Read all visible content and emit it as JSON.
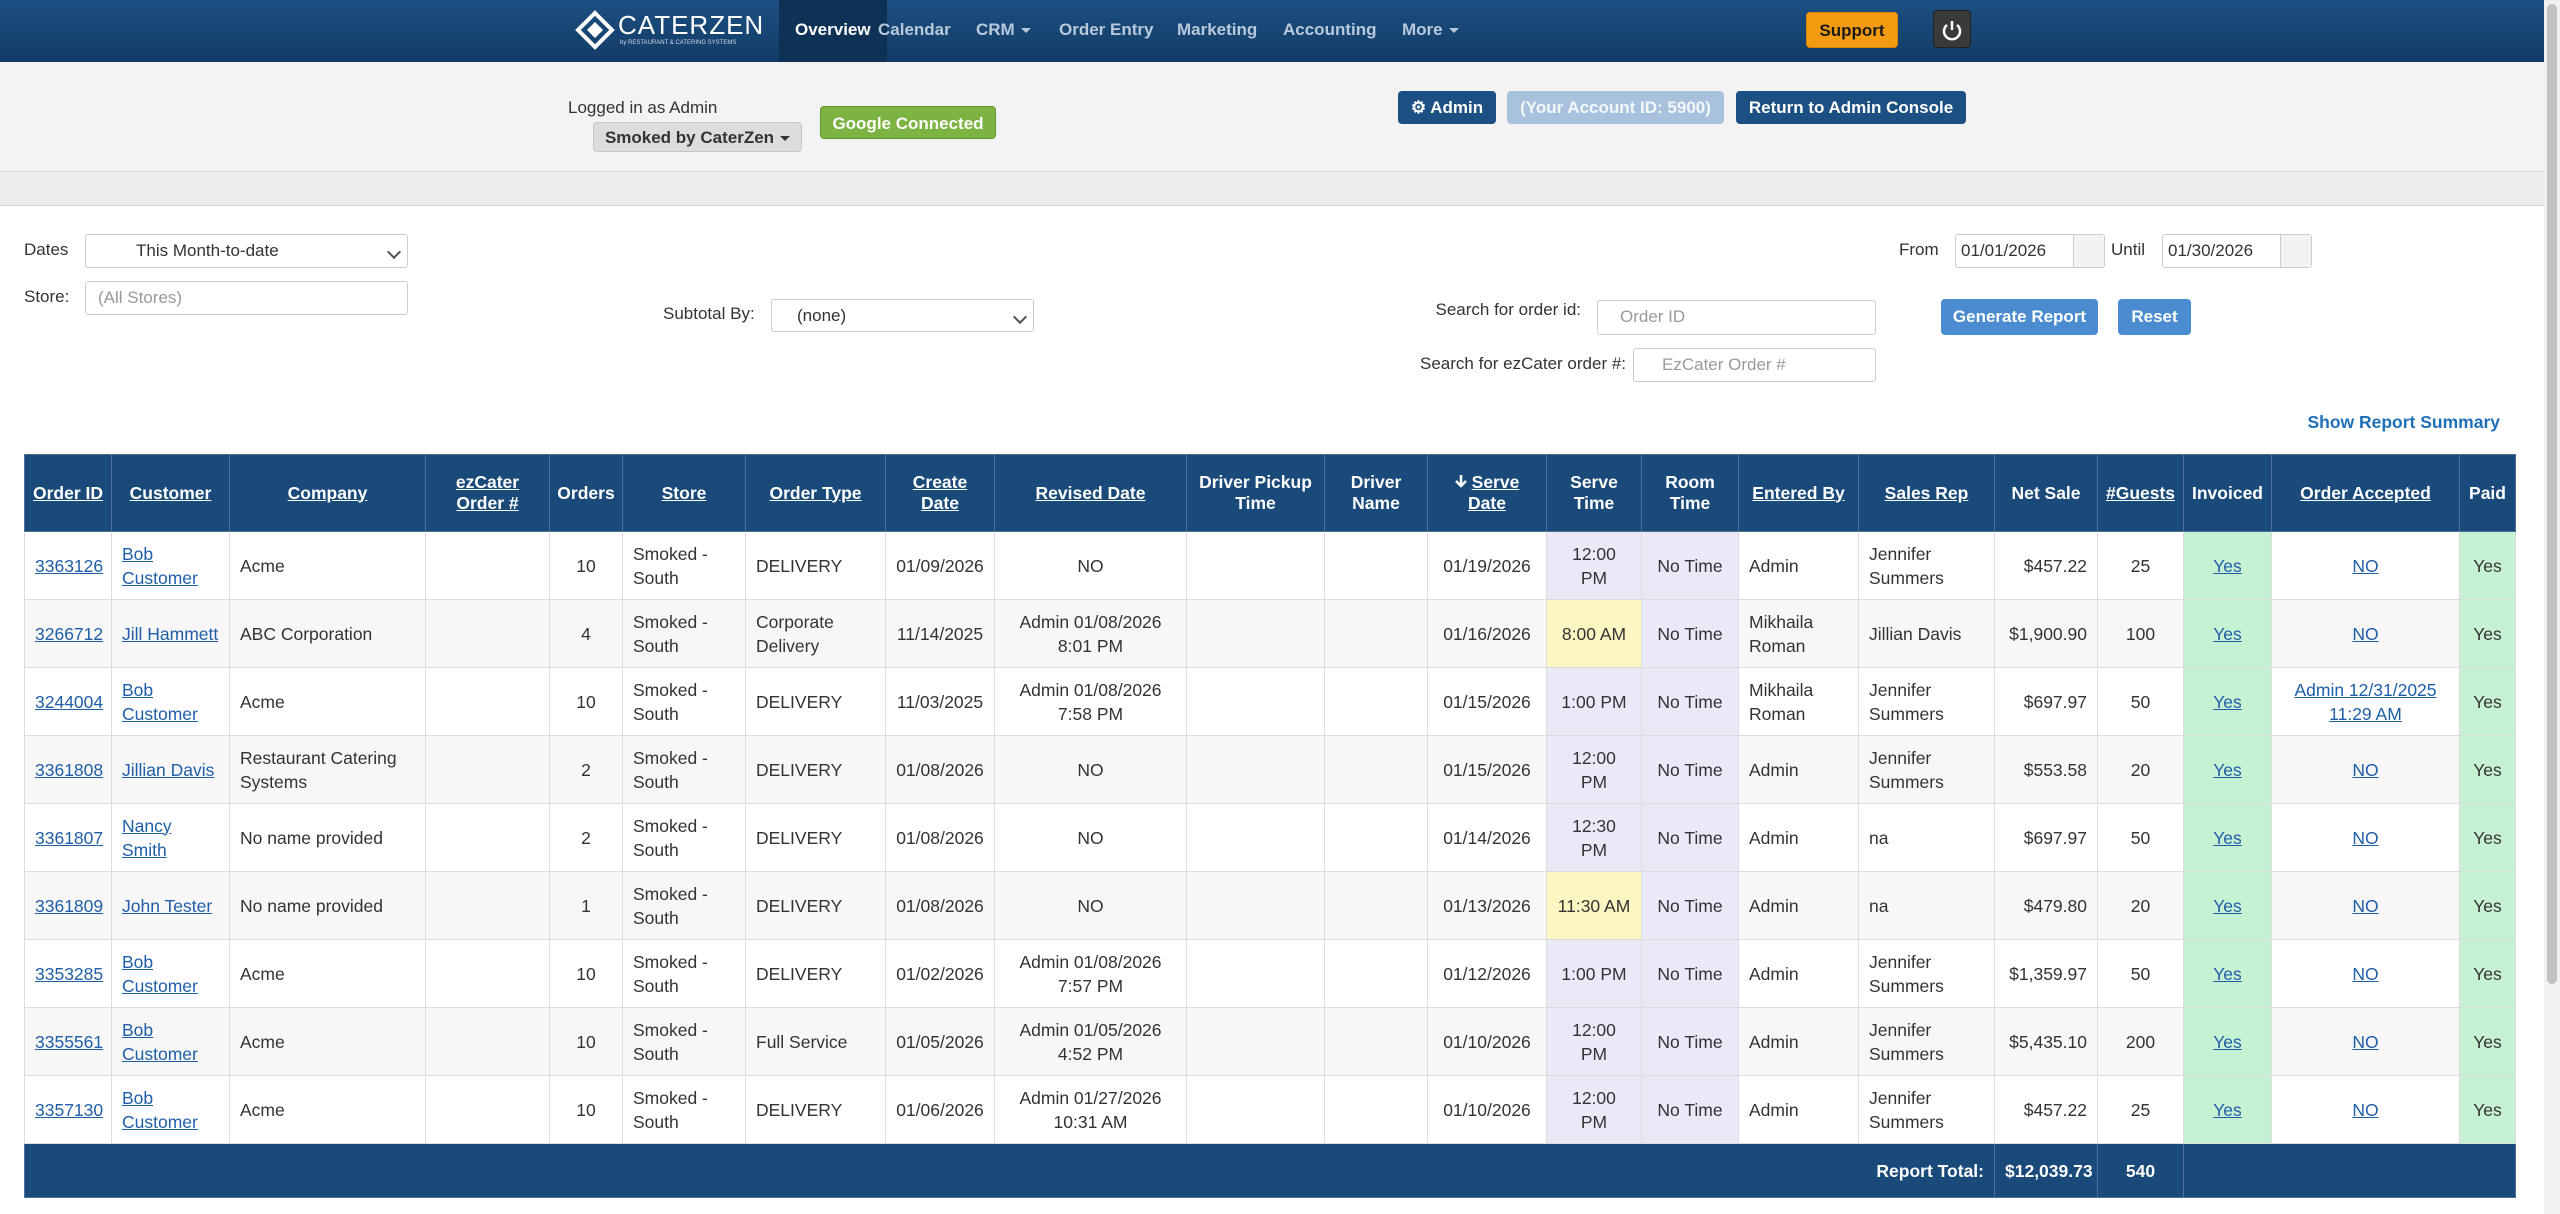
{
  "nav": {
    "logo": "CATERZEN",
    "logo_tagline": "by RESTAURANT & CATERING SYSTEMS",
    "items": [
      "Overview",
      "Calendar",
      "CRM",
      "Order Entry",
      "Marketing",
      "Accounting",
      "More"
    ],
    "support": "Support"
  },
  "account_bar": {
    "logged_in": "Logged in as Admin",
    "store_menu": "Smoked by CaterZen",
    "google": "Google Connected",
    "admin": "Admin",
    "account_id": "(Your Account ID: 5900)",
    "return": "Return to Admin Console"
  },
  "filters": {
    "dates_label": "Dates",
    "dates_value": "This Month-to-date",
    "store_label": "Store:",
    "store_placeholder": "(All Stores)",
    "subtotal_label": "Subtotal By:",
    "subtotal_value": "(none)",
    "order_id_label": "Search for order id:",
    "order_id_placeholder": "Order ID",
    "ezcater_label": "Search for ezCater order #:",
    "ezcater_placeholder": "EzCater Order #",
    "from_label": "From",
    "from_value": "01/01/2026",
    "until_label": "Until",
    "until_value": "01/30/2026",
    "generate": "Generate Report",
    "reset": "Reset",
    "summary_link": "Show Report Summary"
  },
  "table": {
    "columns": [
      "Order ID",
      "Customer",
      "Company",
      "ezCater Order #",
      "Orders",
      "Store",
      "Order Type",
      "Create Date",
      "Revised Date",
      "Driver Pickup Time",
      "Driver Name",
      "Serve Date",
      "Serve Time",
      "Room Time",
      "Entered By",
      "Sales Rep",
      "Net Sale",
      "#Guests",
      "Invoiced",
      "Order Accepted",
      "Paid"
    ],
    "rows": [
      [
        "3363126",
        "Bob Customer",
        "Acme",
        null,
        "10",
        "Smoked - South",
        "DELIVERY",
        "01/09/2026",
        "NO",
        null,
        null,
        "01/19/2026",
        "12:00 PM",
        "No Time",
        "Admin",
        "Jennifer Summers",
        "$457.22",
        "25",
        "Yes",
        "NO",
        "Yes"
      ],
      [
        "3266712",
        "Jill Hammett",
        "ABC Corporation",
        null,
        "4",
        "Smoked - South",
        "Corporate Delivery",
        "11/14/2025",
        "Admin 01/08/2026 8:01 PM",
        null,
        null,
        "01/16/2026",
        "8:00 AM",
        "No Time",
        "Mikhaila Roman",
        "Jillian Davis",
        "$1,900.90",
        "100",
        "Yes",
        "NO",
        "Yes"
      ],
      [
        "3244004",
        "Bob Customer",
        "Acme",
        null,
        "10",
        "Smoked - South",
        "DELIVERY",
        "11/03/2025",
        "Admin 01/08/2026 7:58 PM",
        null,
        null,
        "01/15/2026",
        "1:00 PM",
        "No Time",
        "Mikhaila Roman",
        "Jennifer Summers",
        "$697.97",
        "50",
        "Yes",
        "Admin 12/31/2025 11:29 AM",
        "Yes"
      ],
      [
        "3361808",
        "Jillian Davis",
        "Restaurant Catering Systems",
        null,
        "2",
        "Smoked - South",
        "DELIVERY",
        "01/08/2026",
        "NO",
        null,
        null,
        "01/15/2026",
        "12:00 PM",
        "No Time",
        "Admin",
        "Jennifer Summers",
        "$553.58",
        "20",
        "Yes",
        "NO",
        "Yes"
      ],
      [
        "3361807",
        "Nancy Smith",
        "No name provided",
        null,
        "2",
        "Smoked - South",
        "DELIVERY",
        "01/08/2026",
        "NO",
        null,
        null,
        "01/14/2026",
        "12:30 PM",
        "No Time",
        "Admin",
        "na",
        "$697.97",
        "50",
        "Yes",
        "NO",
        "Yes"
      ],
      [
        "3361809",
        "John Tester",
        "No name provided",
        null,
        "1",
        "Smoked - South",
        "DELIVERY",
        "01/08/2026",
        "NO",
        null,
        null,
        "01/13/2026",
        "11:30 AM",
        "No Time",
        "Admin",
        "na",
        "$479.80",
        "20",
        "Yes",
        "NO",
        "Yes"
      ],
      [
        "3353285",
        "Bob Customer",
        "Acme",
        null,
        "10",
        "Smoked - South",
        "DELIVERY",
        "01/02/2026",
        "Admin 01/08/2026 7:57 PM",
        null,
        null,
        "01/12/2026",
        "1:00 PM",
        "No Time",
        "Admin",
        "Jennifer Summers",
        "$1,359.97",
        "50",
        "Yes",
        "NO",
        "Yes"
      ],
      [
        "3355561",
        "Bob Customer",
        "Acme",
        null,
        "10",
        "Smoked - South",
        "Full Service",
        "01/05/2026",
        "Admin 01/05/2026 4:52 PM",
        null,
        null,
        "01/10/2026",
        "12:00 PM",
        "No Time",
        "Admin",
        "Jennifer Summers",
        "$5,435.10",
        "200",
        "Yes",
        "NO",
        "Yes"
      ],
      [
        "3357130",
        "Bob Customer",
        "Acme",
        null,
        "10",
        "Smoked - South",
        "DELIVERY",
        "01/06/2026",
        "Admin 01/27/2026 10:31 AM",
        null,
        null,
        "01/10/2026",
        "12:00 PM",
        "No Time",
        "Admin",
        "Jennifer Summers",
        "$457.22",
        "25",
        "Yes",
        "NO",
        "Yes"
      ]
    ],
    "footer": {
      "label": "Report Total:",
      "net_sale": "$12,039.73",
      "guests": "540"
    }
  }
}
